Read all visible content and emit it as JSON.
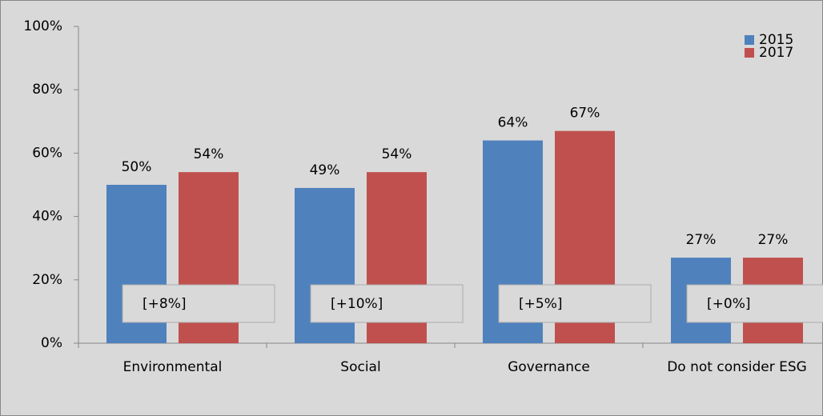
{
  "chart_data": {
    "type": "bar",
    "categories": [
      "Environmental",
      "Social",
      "Governance",
      "Do not consider ESG"
    ],
    "series": [
      {
        "name": "2015",
        "color": "#4f81bd",
        "values": [
          50,
          49,
          64,
          27
        ],
        "value_labels": [
          "50%",
          "49%",
          "64%",
          "27%"
        ]
      },
      {
        "name": "2017",
        "color": "#c0504d",
        "values": [
          54,
          54,
          67,
          27
        ],
        "value_labels": [
          "54%",
          "54%",
          "67%",
          "27%"
        ]
      }
    ],
    "annotations": [
      "[+8%]",
      "[+10%]",
      "[+5%]",
      "[+0%]"
    ],
    "ylim": [
      0,
      100
    ],
    "yticks": [
      {
        "value": 0,
        "label": "0%"
      },
      {
        "value": 20,
        "label": "20%"
      },
      {
        "value": 40,
        "label": "40%"
      },
      {
        "value": 60,
        "label": "60%"
      },
      {
        "value": 80,
        "label": "80%"
      },
      {
        "value": 100,
        "label": "100%"
      }
    ],
    "legend": "upper right"
  }
}
